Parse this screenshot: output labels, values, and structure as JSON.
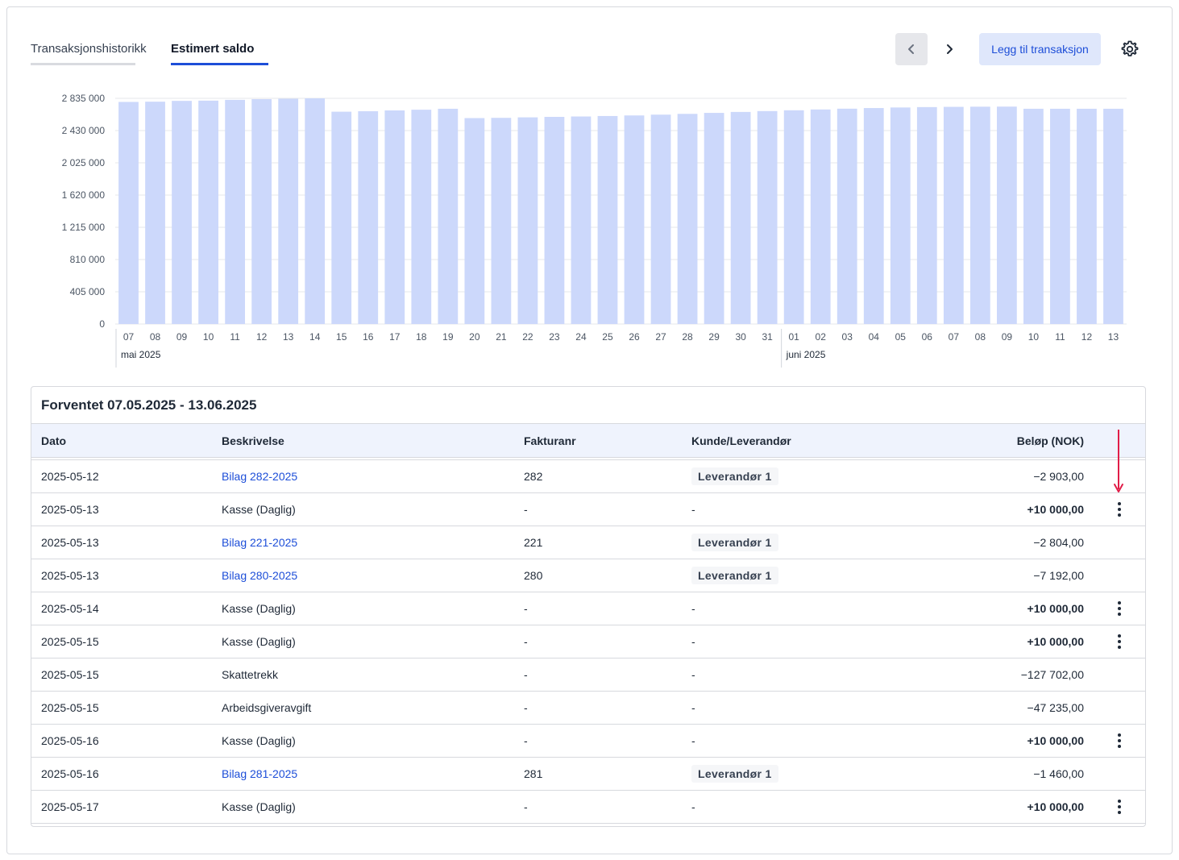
{
  "tabs": [
    {
      "label": "Transaksjonshistorikk",
      "active": false
    },
    {
      "label": "Estimert saldo",
      "active": true
    }
  ],
  "toolbar": {
    "add_label": "Legg til transaksjon",
    "prev_icon": "chevron-left-icon",
    "next_icon": "chevron-right-icon",
    "settings_icon": "gear-icon"
  },
  "colors": {
    "accent": "#1d4ed8",
    "bar": "#ccd8fb",
    "annotation_arrow": "#e11d48"
  },
  "chart_data": {
    "type": "bar",
    "title": "",
    "xlabel": "",
    "ylabel": "",
    "ylim": [
      0,
      2835000
    ],
    "yticks": [
      {
        "value": 2835000,
        "label": "2 835 000"
      },
      {
        "value": 2430000,
        "label": "2 430 000"
      },
      {
        "value": 2025000,
        "label": "2 025 000"
      },
      {
        "value": 1620000,
        "label": "1 620 000"
      },
      {
        "value": 1215000,
        "label": "1 215 000"
      },
      {
        "value": 810000,
        "label": "810 000"
      },
      {
        "value": 405000,
        "label": "405 000"
      },
      {
        "value": 0,
        "label": "0"
      }
    ],
    "categories": [
      "07",
      "08",
      "09",
      "10",
      "11",
      "12",
      "13",
      "14",
      "15",
      "16",
      "17",
      "18",
      "19",
      "20",
      "21",
      "22",
      "23",
      "24",
      "25",
      "26",
      "27",
      "28",
      "29",
      "30",
      "31",
      "01",
      "02",
      "03",
      "04",
      "05",
      "06",
      "07",
      "08",
      "09",
      "10",
      "11",
      "12",
      "13"
    ],
    "values": [
      2790000,
      2793000,
      2803000,
      2806000,
      2816000,
      2825000,
      2830000,
      2835000,
      2667000,
      2673000,
      2683000,
      2692000,
      2704000,
      2587000,
      2590000,
      2596000,
      2602000,
      2607000,
      2613000,
      2620000,
      2630000,
      2640000,
      2652000,
      2664000,
      2675000,
      2685000,
      2695000,
      2705000,
      2713000,
      2720000,
      2725000,
      2728000,
      2730000,
      2731000,
      2704000,
      2704000,
      2704000,
      2704000
    ],
    "months": [
      {
        "label": "mai 2025",
        "start_index": 0
      },
      {
        "label": "juni 2025",
        "start_index": 25
      }
    ],
    "grid": true,
    "legend": "none"
  },
  "table": {
    "title": "Forventet 07.05.2025 - 13.06.2025",
    "columns": {
      "date": "Dato",
      "description": "Beskrivelse",
      "invoice": "Fakturanr",
      "party": "Kunde/Leverandør",
      "amount": "Beløp (NOK)"
    },
    "rows": [
      {
        "date": "2025-05-12",
        "description": "Bilag 282-2025",
        "desc_link": true,
        "invoice": "282",
        "party": "Leverandør 1",
        "party_chip": true,
        "amount": "−2 903,00",
        "bold": false,
        "menu": false
      },
      {
        "date": "2025-05-13",
        "description": "Kasse (Daglig)",
        "desc_link": false,
        "invoice": "-",
        "party": "-",
        "party_chip": false,
        "amount": "+10 000,00",
        "bold": true,
        "menu": true
      },
      {
        "date": "2025-05-13",
        "description": "Bilag 221-2025",
        "desc_link": true,
        "invoice": "221",
        "party": "Leverandør 1",
        "party_chip": true,
        "amount": "−2 804,00",
        "bold": false,
        "menu": false
      },
      {
        "date": "2025-05-13",
        "description": "Bilag 280-2025",
        "desc_link": true,
        "invoice": "280",
        "party": "Leverandør 1",
        "party_chip": true,
        "amount": "−7 192,00",
        "bold": false,
        "menu": false
      },
      {
        "date": "2025-05-14",
        "description": "Kasse (Daglig)",
        "desc_link": false,
        "invoice": "-",
        "party": "-",
        "party_chip": false,
        "amount": "+10 000,00",
        "bold": true,
        "menu": true
      },
      {
        "date": "2025-05-15",
        "description": "Kasse (Daglig)",
        "desc_link": false,
        "invoice": "-",
        "party": "-",
        "party_chip": false,
        "amount": "+10 000,00",
        "bold": true,
        "menu": true
      },
      {
        "date": "2025-05-15",
        "description": "Skattetrekk",
        "desc_link": false,
        "invoice": "-",
        "party": "-",
        "party_chip": false,
        "amount": "−127 702,00",
        "bold": false,
        "menu": false
      },
      {
        "date": "2025-05-15",
        "description": "Arbeidsgiveravgift",
        "desc_link": false,
        "invoice": "-",
        "party": "-",
        "party_chip": false,
        "amount": "−47 235,00",
        "bold": false,
        "menu": false
      },
      {
        "date": "2025-05-16",
        "description": "Kasse (Daglig)",
        "desc_link": false,
        "invoice": "-",
        "party": "-",
        "party_chip": false,
        "amount": "+10 000,00",
        "bold": true,
        "menu": true
      },
      {
        "date": "2025-05-16",
        "description": "Bilag 281-2025",
        "desc_link": true,
        "invoice": "281",
        "party": "Leverandør 1",
        "party_chip": true,
        "amount": "−1 460,00",
        "bold": false,
        "menu": false
      },
      {
        "date": "2025-05-17",
        "description": "Kasse (Daglig)",
        "desc_link": false,
        "invoice": "-",
        "party": "-",
        "party_chip": false,
        "amount": "+10 000,00",
        "bold": true,
        "menu": true
      }
    ]
  }
}
